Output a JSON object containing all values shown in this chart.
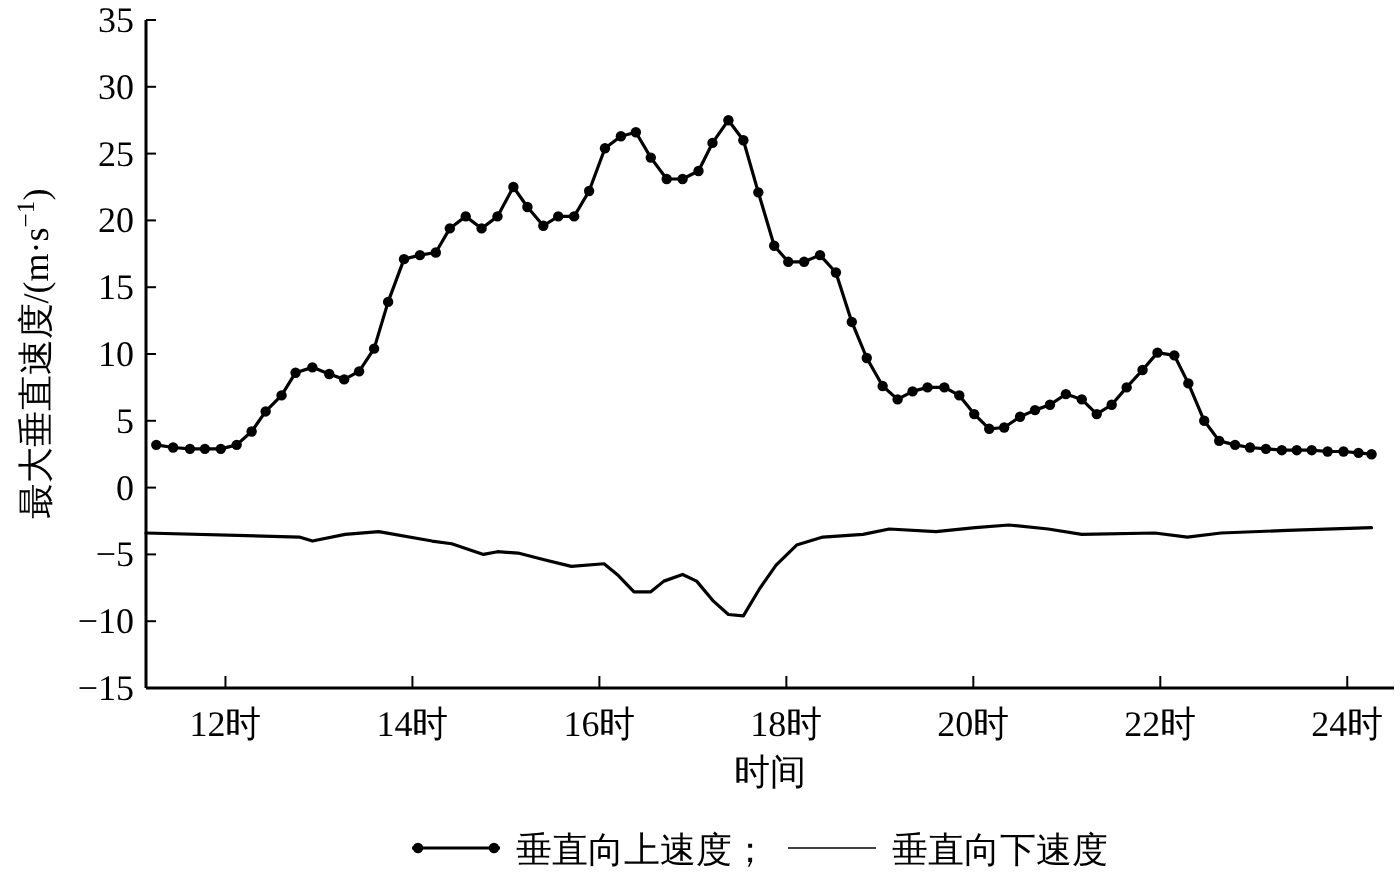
{
  "chart_data": {
    "type": "line",
    "xlabel": "时间",
    "ylabel": "最大垂直速度/(m·s$^{−1}$)",
    "xlim": [
      11.15,
      24.5
    ],
    "ylim": [
      -15,
      35
    ],
    "xticks": [
      {
        "value": 12,
        "label": "12时"
      },
      {
        "value": 14,
        "label": "14时"
      },
      {
        "value": 16,
        "label": "16时"
      },
      {
        "value": 18,
        "label": "18时"
      },
      {
        "value": 20,
        "label": "20时"
      },
      {
        "value": 22,
        "label": "22时"
      },
      {
        "value": 24,
        "label": "24时"
      }
    ],
    "yticks": [
      {
        "value": -15,
        "label": "−15"
      },
      {
        "value": -10,
        "label": "−10"
      },
      {
        "value": -5,
        "label": "−5"
      },
      0,
      5,
      10,
      15,
      20,
      25,
      30,
      35
    ],
    "grid": false,
    "legend": "bottom",
    "series": [
      {
        "name": "垂直向上速度；",
        "color": "#000000",
        "marker": "circle",
        "line_style": "solid",
        "x": [
          11.26,
          11.44,
          11.62,
          11.78,
          11.95,
          12.12,
          12.28,
          12.43,
          12.6,
          12.75,
          12.93,
          13.11,
          13.27,
          13.43,
          13.59,
          13.74,
          13.91,
          14.08,
          14.25,
          14.4,
          14.57,
          14.74,
          14.91,
          15.08,
          15.23,
          15.4,
          15.56,
          15.73,
          15.89,
          16.06,
          16.23,
          16.39,
          16.55,
          16.72,
          16.89,
          17.06,
          17.21,
          17.38,
          17.54,
          17.7,
          17.87,
          18.02,
          18.19,
          18.36,
          18.53,
          18.7,
          18.86,
          19.03,
          19.19,
          19.35,
          19.51,
          19.69,
          19.85,
          20.01,
          20.17,
          20.33,
          20.5,
          20.66,
          20.82,
          20.99,
          21.16,
          21.32,
          21.48,
          21.64,
          21.81,
          21.97,
          22.15,
          22.3,
          22.47,
          22.63,
          22.8,
          22.96,
          23.13,
          23.3,
          23.46,
          23.62,
          23.79,
          23.96,
          24.12,
          24.26
        ],
        "values": [
          3.2,
          3.0,
          2.9,
          2.9,
          2.9,
          3.2,
          4.2,
          5.7,
          6.9,
          8.6,
          9.0,
          8.5,
          8.1,
          8.7,
          10.4,
          13.9,
          17.1,
          17.4,
          17.6,
          19.4,
          20.3,
          19.4,
          20.3,
          22.5,
          21.0,
          19.6,
          20.3,
          20.3,
          22.2,
          25.4,
          26.3,
          26.6,
          24.7,
          23.1,
          23.1,
          23.7,
          25.8,
          27.5,
          26.0,
          22.1,
          18.1,
          16.9,
          16.9,
          17.4,
          16.1,
          12.4,
          9.7,
          7.6,
          6.6,
          7.2,
          7.5,
          7.5,
          6.9,
          5.5,
          4.4,
          4.5,
          5.3,
          5.8,
          6.2,
          7.0,
          6.6,
          5.5,
          6.2,
          7.5,
          8.8,
          10.1,
          9.9,
          7.8,
          5.0,
          3.5,
          3.2,
          3.0,
          2.9,
          2.8,
          2.8,
          2.8,
          2.7,
          2.7,
          2.6,
          2.5
        ]
      },
      {
        "name": "垂直向下速度",
        "color": "#000000",
        "marker": "none",
        "line_style": "solid",
        "x": [
          11.15,
          12.79,
          12.93,
          13.28,
          13.64,
          14.21,
          14.42,
          14.76,
          14.91,
          15.13,
          15.41,
          15.7,
          16.05,
          16.19,
          16.37,
          16.55,
          16.69,
          16.89,
          17.04,
          17.22,
          17.38,
          17.54,
          17.72,
          17.89,
          18.11,
          18.39,
          18.82,
          19.1,
          19.6,
          20.02,
          20.38,
          20.8,
          21.16,
          21.94,
          22.29,
          22.65,
          23.36,
          24.26
        ],
        "values": [
          -3.4,
          -3.7,
          -4.0,
          -3.5,
          -3.3,
          -4.0,
          -4.2,
          -5.0,
          -4.8,
          -4.9,
          -5.4,
          -5.9,
          -5.7,
          -6.5,
          -7.8,
          -7.8,
          -7.0,
          -6.5,
          -7.0,
          -8.5,
          -9.5,
          -9.6,
          -7.5,
          -5.8,
          -4.3,
          -3.7,
          -3.5,
          -3.1,
          -3.3,
          -3.0,
          -2.8,
          -3.1,
          -3.5,
          -3.4,
          -3.7,
          -3.4,
          -3.2,
          -3.0
        ]
      }
    ]
  }
}
